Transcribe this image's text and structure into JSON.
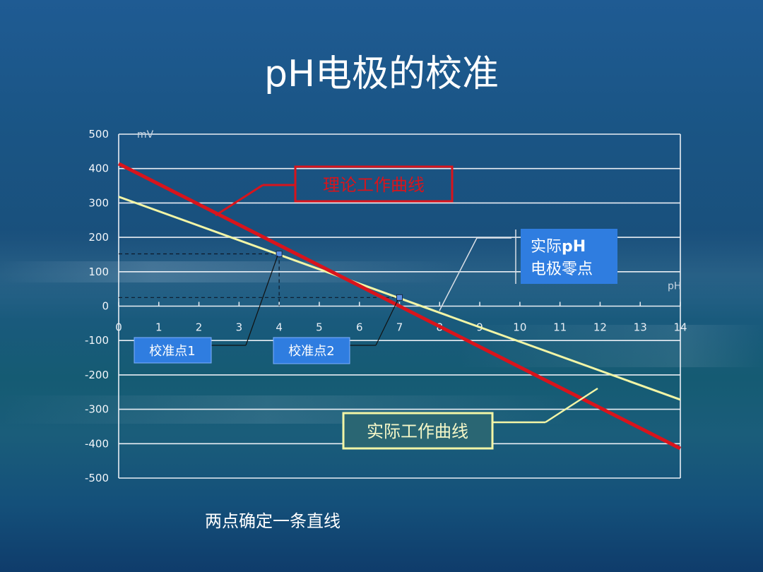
{
  "title": "pH电极的校准",
  "footer": "两点确定一条直线",
  "chart_data": {
    "type": "line",
    "x_unit": "pH",
    "y_unit": "mV",
    "xlim": [
      0,
      14
    ],
    "ylim": [
      -500,
      500
    ],
    "x_ticks": [
      0,
      1,
      2,
      3,
      4,
      5,
      6,
      7,
      8,
      9,
      10,
      11,
      12,
      13,
      14
    ],
    "y_ticks": [
      500,
      400,
      300,
      200,
      100,
      0,
      -100,
      -200,
      -300,
      -400,
      -500
    ],
    "grid": "horizontal",
    "series": [
      {
        "name": "理论工作曲线",
        "color": "#d8141c",
        "x": [
          0,
          14
        ],
        "y": [
          414,
          -414
        ]
      },
      {
        "name": "实际工作曲线",
        "color": "#f2f5a6",
        "x": [
          0,
          14
        ],
        "y": [
          318,
          -272
        ]
      }
    ],
    "points": [
      {
        "label": "校准点1",
        "x": 4,
        "y": 152
      },
      {
        "label": "校准点2",
        "x": 7,
        "y": 25
      }
    ],
    "annotations": [
      {
        "text_line1": "实际",
        "text_bold": "pH",
        "text_line2": "电极零点"
      }
    ]
  }
}
